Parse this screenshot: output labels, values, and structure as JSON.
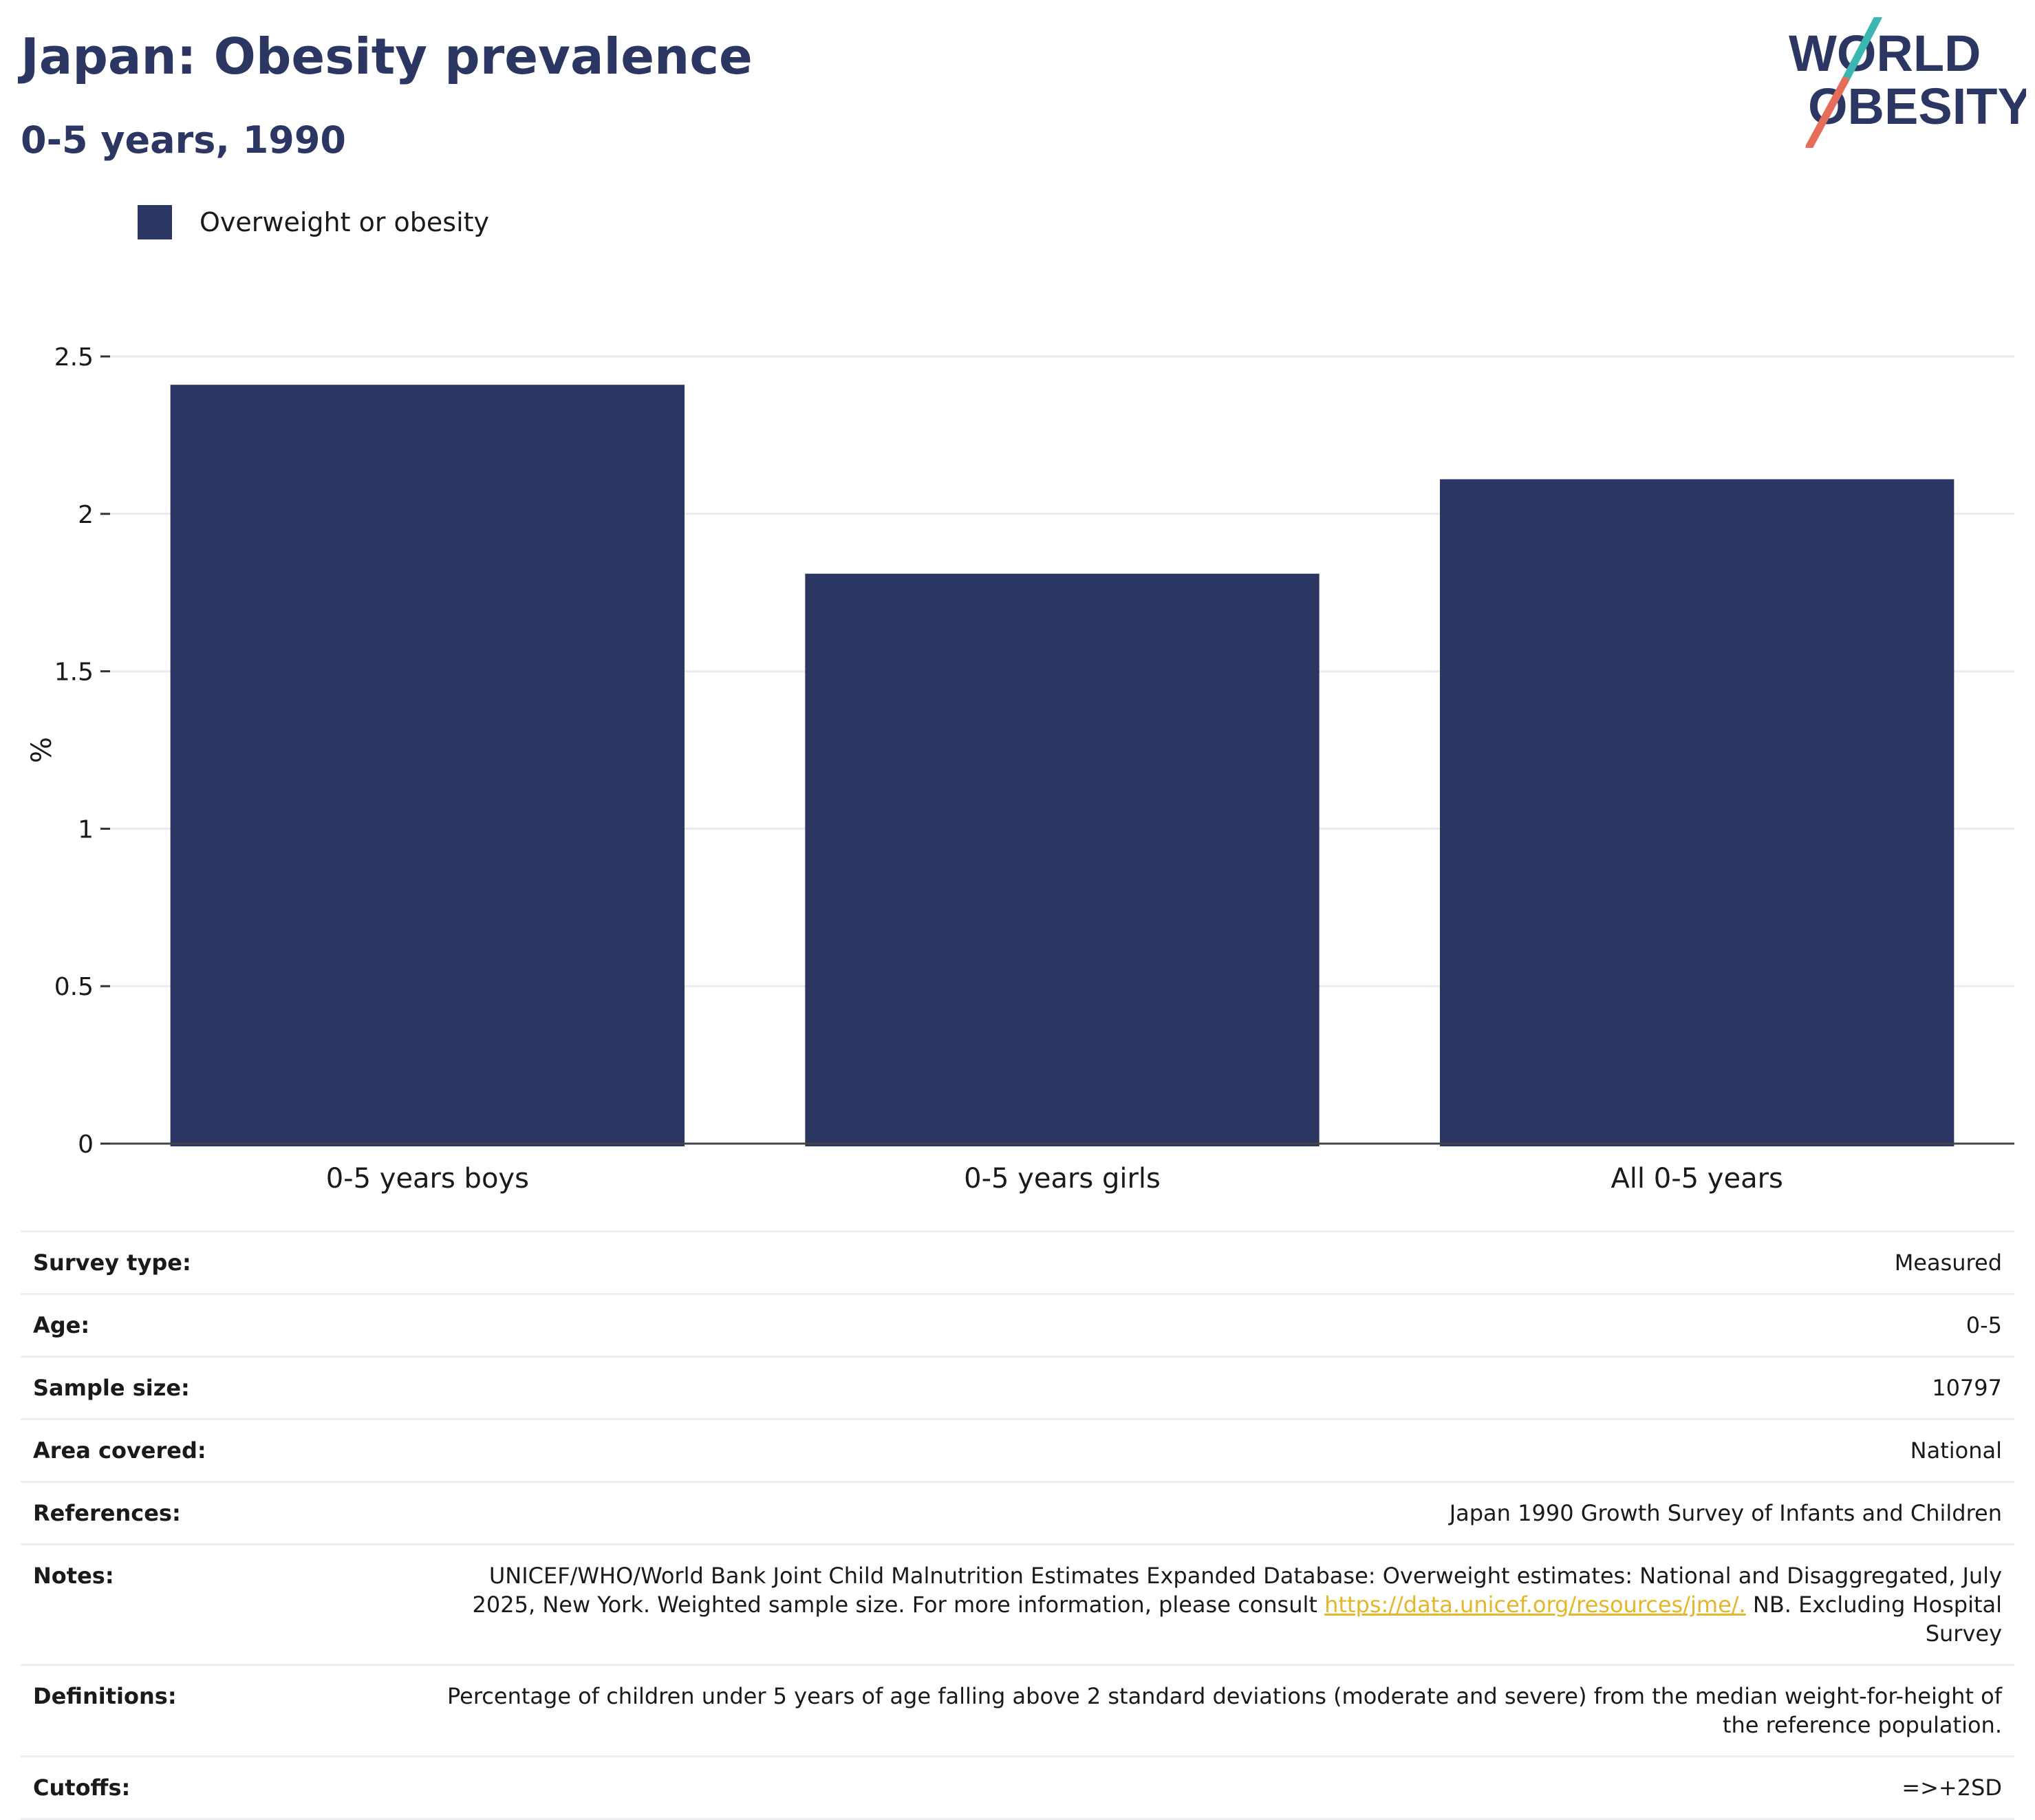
{
  "header": {
    "title": "Japan: Obesity prevalence",
    "subtitle": "0-5 years, 1990"
  },
  "logo": {
    "line1": "WORLD",
    "line2": "OBESITY"
  },
  "colors": {
    "bar": "#2b3762",
    "title": "#2b3762",
    "link": "#e6b62a",
    "logo_slash_top": "#3bb6b0",
    "logo_slash_bottom": "#e56e5a"
  },
  "chart_data": {
    "type": "bar",
    "categories": [
      "0-5 years boys",
      "0-5 years girls",
      "All 0-5 years"
    ],
    "series": [
      {
        "name": "Overweight or obesity",
        "values": [
          2.41,
          1.81,
          2.11
        ]
      }
    ],
    "ylabel": "%",
    "ylim": [
      0,
      2.5
    ],
    "yticks": [
      0,
      0.5,
      1,
      1.5,
      2,
      2.5
    ],
    "ytick_labels": [
      "0",
      "0.5",
      "1",
      "1.5",
      "2",
      "2.5"
    ],
    "grid": true,
    "legend_position": "top-left"
  },
  "details": {
    "survey_type": {
      "label": "Survey type:",
      "value": "Measured"
    },
    "age": {
      "label": "Age:",
      "value": "0-5"
    },
    "sample_size": {
      "label": "Sample size:",
      "value": "10797"
    },
    "area": {
      "label": "Area covered:",
      "value": "National"
    },
    "references": {
      "label": "References:",
      "value": "Japan 1990 Growth Survey of Infants and Children"
    },
    "notes": {
      "label": "Notes:",
      "text_before": "UNICEF/WHO/World Bank Joint Child Malnutrition Estimates Expanded Database: Overweight estimates: National and Disaggregated, July 2025, New York. Weighted sample size. For more information, please consult ",
      "link": "https://data.unicef.org/resources/jme/.",
      "text_after": " NB. Excluding Hospital Survey"
    },
    "definitions": {
      "label": "Definitions:",
      "value": "Percentage of children under 5 years of age falling above 2 standard deviations (moderate and severe) from the median weight-for-height of the reference population."
    },
    "cutoffs": {
      "label": "Cutoffs:",
      "value": "=>+2SD"
    }
  }
}
